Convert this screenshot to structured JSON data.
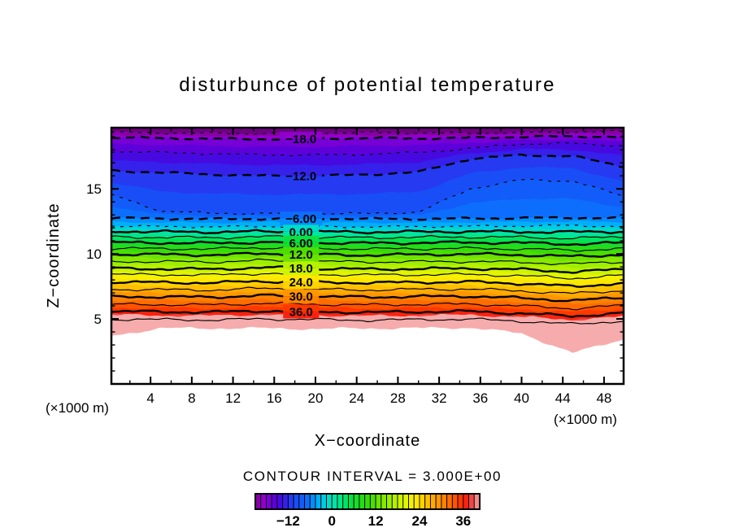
{
  "figure": {
    "background": "#ffffff",
    "text_color": "#000000"
  },
  "chart_data": {
    "type": "filled-contour",
    "title": "disturbunce of potential temperature",
    "xlabel": "X−coordinate",
    "ylabel": "Z−coordinate",
    "x_unit_label": "(×1000 m)",
    "z_unit_label": "(×1000 m)",
    "contour_interval_label": "CONTOUR INTERVAL = 3.000E+00",
    "contour_interval": 3.0,
    "x_axis": {
      "range": [
        0.2,
        49.9
      ],
      "major_ticks": [
        4,
        8,
        12,
        16,
        20,
        24,
        28,
        32,
        36,
        40,
        44,
        48
      ],
      "major_tick_labels": [
        "4",
        "8",
        "12",
        "16",
        "20",
        "24",
        "28",
        "32",
        "36",
        "40",
        "44",
        "48"
      ],
      "minor_ticks": [
        2,
        6,
        10,
        14,
        18,
        22,
        26,
        30,
        34,
        38,
        42,
        46
      ]
    },
    "z_axis": {
      "range": [
        0,
        19.7
      ],
      "major_ticks": [
        5,
        10,
        15
      ],
      "major_tick_labels": [
        "5",
        "10",
        "15"
      ],
      "minor_ticks": [
        1,
        2,
        3,
        4,
        6,
        7,
        8,
        9,
        11,
        12,
        13,
        14,
        16,
        17,
        18,
        19
      ]
    },
    "stations_x": [
      0,
      5,
      10,
      15,
      20,
      25,
      30,
      35,
      40,
      45,
      50
    ],
    "label_anchor_x": 18.6,
    "levels": [
      {
        "value": -21,
        "profile": [
          19.35,
          19.3,
          19.28,
          19.25,
          19.3,
          19.32,
          19.3,
          19.28,
          19.33,
          19.38,
          19.4
        ]
      },
      {
        "value": -18,
        "label": "−18.0",
        "profile": [
          18.95,
          18.9,
          18.85,
          18.82,
          18.85,
          18.9,
          18.88,
          18.92,
          19.0,
          19.05,
          18.98
        ]
      },
      {
        "value": -15,
        "profile": [
          17.9,
          17.8,
          17.7,
          17.62,
          17.6,
          17.66,
          17.8,
          18.1,
          18.45,
          18.5,
          18.3
        ]
      },
      {
        "value": -12,
        "label": "−12.0",
        "profile": [
          16.4,
          16.25,
          16.1,
          16.0,
          16.0,
          16.1,
          16.3,
          17.3,
          17.6,
          17.5,
          16.7
        ]
      },
      {
        "value": -9,
        "profile": [
          14.6,
          13.3,
          13.12,
          13.1,
          13.1,
          13.1,
          13.2,
          15.0,
          15.7,
          15.6,
          14.4
        ]
      },
      {
        "value": -6,
        "label": "−6.00",
        "profile": [
          12.75,
          12.72,
          12.68,
          12.7,
          12.72,
          12.7,
          12.68,
          12.72,
          12.75,
          12.78,
          12.72
        ]
      },
      {
        "value": -3,
        "profile": [
          12.15,
          12.1,
          12.08,
          12.12,
          12.1,
          12.08,
          12.1,
          12.12,
          12.15,
          12.18,
          12.1
        ]
      },
      {
        "value": 0,
        "label": "0.00",
        "profile": [
          11.75,
          11.7,
          11.68,
          11.72,
          11.7,
          11.68,
          11.7,
          11.72,
          11.7,
          11.68,
          11.72
        ]
      },
      {
        "value": 3,
        "profile": [
          11.3,
          11.28,
          11.25,
          11.32,
          11.28,
          11.25,
          11.28,
          11.3,
          11.28,
          11.2,
          11.3
        ]
      },
      {
        "value": 6,
        "label": "6.00",
        "profile": [
          10.88,
          10.85,
          10.82,
          10.9,
          10.85,
          10.82,
          10.85,
          10.88,
          10.85,
          10.75,
          10.85
        ]
      },
      {
        "value": 9,
        "profile": [
          10.42,
          10.4,
          10.38,
          10.48,
          10.42,
          10.38,
          10.4,
          10.42,
          10.38,
          10.28,
          10.4
        ]
      },
      {
        "value": 12,
        "label": "12.0",
        "profile": [
          9.98,
          9.95,
          9.92,
          10.02,
          9.95,
          9.9,
          9.95,
          9.98,
          9.92,
          9.8,
          9.95
        ]
      },
      {
        "value": 15,
        "profile": [
          9.42,
          9.4,
          9.38,
          9.5,
          9.42,
          9.38,
          9.4,
          9.42,
          9.35,
          9.22,
          9.4
        ]
      },
      {
        "value": 18,
        "label": "18.0",
        "profile": [
          8.88,
          8.85,
          8.82,
          8.95,
          8.88,
          8.82,
          8.85,
          8.88,
          8.8,
          8.62,
          8.82
        ]
      },
      {
        "value": 21,
        "profile": [
          8.42,
          8.4,
          8.38,
          8.5,
          8.42,
          8.38,
          8.4,
          8.42,
          8.32,
          8.12,
          8.35
        ]
      },
      {
        "value": 24,
        "label": "24.0",
        "profile": [
          7.85,
          7.8,
          7.78,
          7.9,
          7.82,
          7.78,
          7.82,
          7.85,
          7.72,
          7.5,
          7.75
        ]
      },
      {
        "value": 27,
        "profile": [
          7.28,
          7.25,
          7.22,
          7.35,
          7.28,
          7.22,
          7.28,
          7.3,
          7.15,
          6.95,
          7.2
        ]
      },
      {
        "value": 30,
        "label": "30.0",
        "profile": [
          6.72,
          6.7,
          6.68,
          6.8,
          6.72,
          6.68,
          6.72,
          6.75,
          6.6,
          6.4,
          6.65
        ]
      },
      {
        "value": 33,
        "profile": [
          6.12,
          6.1,
          6.08,
          6.2,
          6.12,
          6.08,
          6.12,
          6.15,
          6.0,
          5.8,
          6.05
        ]
      },
      {
        "value": 36,
        "label": "36.0",
        "profile": [
          5.58,
          5.55,
          5.52,
          5.62,
          5.55,
          5.5,
          5.55,
          5.58,
          5.42,
          5.22,
          5.45
        ]
      },
      {
        "value": 39,
        "profile": [
          4.98,
          4.95,
          4.92,
          5.0,
          4.95,
          4.9,
          4.95,
          4.98,
          4.82,
          4.6,
          4.85
        ]
      }
    ],
    "fill": {
      "step": 1.5,
      "min_boundary": -22.5,
      "max_boundary": 40.5,
      "fade_color": "#F6ACAC",
      "below_color": "#ffffff",
      "bottom_edge_profile": [
        3.7,
        4.3,
        4.3,
        4.3,
        4.25,
        4.3,
        4.3,
        4.35,
        3.9,
        2.4,
        3.5
      ]
    },
    "palette_stops": [
      [
        -21,
        "#6E0082"
      ],
      [
        -19.5,
        "#A000C8"
      ],
      [
        -18,
        "#8200D2"
      ],
      [
        -15,
        "#5000DC"
      ],
      [
        -13.5,
        "#3C14E6"
      ],
      [
        -12,
        "#2D2DEE"
      ],
      [
        -10.5,
        "#1E46F5"
      ],
      [
        -9,
        "#1455F8"
      ],
      [
        -7.5,
        "#0F64FA"
      ],
      [
        -6,
        "#0A78FF"
      ],
      [
        -4.5,
        "#00A0FF"
      ],
      [
        -3,
        "#00BEF0"
      ],
      [
        -1.5,
        "#00D7D7"
      ],
      [
        0,
        "#00E1B4"
      ],
      [
        1.5,
        "#00E696"
      ],
      [
        3,
        "#00E678"
      ],
      [
        4.5,
        "#00E150"
      ],
      [
        7.5,
        "#1EDC1E"
      ],
      [
        10.5,
        "#3CDC00"
      ],
      [
        13.5,
        "#78E600"
      ],
      [
        16.5,
        "#AAF000"
      ],
      [
        19.5,
        "#D7F500"
      ],
      [
        22.5,
        "#FFF000"
      ],
      [
        25.5,
        "#FFC800"
      ],
      [
        28.5,
        "#FFA000"
      ],
      [
        31.5,
        "#FF7800"
      ],
      [
        34.5,
        "#FF4600"
      ],
      [
        36,
        "#FF2800"
      ],
      [
        37.5,
        "#F01E1E"
      ],
      [
        39,
        "#F07070"
      ],
      [
        40.5,
        "#F5A5A5"
      ]
    ],
    "colorbar": {
      "min": -21,
      "max": 40.5,
      "n_stripes": 41,
      "ticks": [
        -12,
        0,
        12,
        24,
        36
      ],
      "tick_labels": [
        "−12",
        "0",
        "12",
        "24",
        "36"
      ]
    }
  }
}
